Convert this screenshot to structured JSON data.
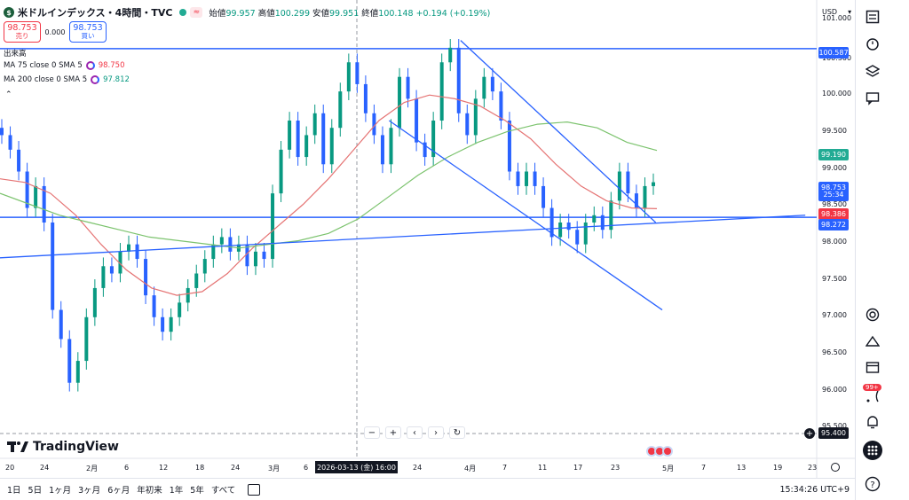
{
  "header": {
    "symbol_logo": "$",
    "title": "米ドルインデックス・4時間・TVC",
    "wave_icon": "≈",
    "ohlc": [
      {
        "label": "始値",
        "value": "99.957",
        "tone": "up"
      },
      {
        "label": "高値",
        "value": "100.299",
        "tone": "up"
      },
      {
        "label": "安値",
        "value": "99.951",
        "tone": "up"
      },
      {
        "label": "終値",
        "value": "100.148",
        "tone": "up"
      }
    ],
    "change": "+0.194 (+0.19%)"
  },
  "trade": {
    "sell_price": "98.753",
    "sell_label": "売り",
    "spread": "0.000",
    "buy_price": "98.753",
    "buy_label": "買い"
  },
  "legend": {
    "volume": "出来高",
    "ma75_name": "MA 75 close 0 SMA 5",
    "ma75_value": "98.750",
    "ma200_name": "MA 200 close 0 SMA 5",
    "ma200_value": "97.812",
    "collapse": "⌃"
  },
  "currency": {
    "label": "USD",
    "chevron": "▾"
  },
  "price_axis": {
    "labels": [
      "101.000",
      "100.500",
      "100.000",
      "99.500",
      "99.000",
      "98.500",
      "98.000",
      "97.500",
      "97.000",
      "96.500",
      "96.000",
      "95.500"
    ],
    "tags": {
      "hline_top": "100.587",
      "ma200_tag": "99.190",
      "last_price": "98.753",
      "countdown": "25:34",
      "ma75_tag": "98.386",
      "hline_bottom": "98.272",
      "crosshair": "95.400"
    },
    "crosshair_plus": "+"
  },
  "time_axis": {
    "labels": [
      "20",
      "24",
      "2月",
      "6",
      "12",
      "18",
      "24",
      "3月",
      "6",
      "24",
      "4月",
      "7",
      "11",
      "17",
      "23",
      "5月",
      "7",
      "13",
      "19",
      "23"
    ],
    "cursor": "2026-03-13 (金)   16:00"
  },
  "logo_text": "TradingView",
  "nav_controls": [
    "−",
    "+",
    "‹",
    "›",
    "↻"
  ],
  "range_buttons": [
    "1日",
    "5日",
    "1ヶ月",
    "3ヶ月",
    "6ヶ月",
    "年初来",
    "1年",
    "5年",
    "すべて"
  ],
  "clock": "15:34:26 UTC+9",
  "toolbar_badge": "99+",
  "colors": {
    "up": "#089981",
    "down": "#2962ff",
    "ma75": "#e57373",
    "ma200": "#7cc36e",
    "hline": "#2962ff",
    "sell": "#f23645",
    "buy": "#2962ff"
  },
  "chart_data": {
    "type": "candlestick",
    "symbol": "米ドルインデックス",
    "interval": "4時間",
    "y_range": [
      95.4,
      101.0
    ],
    "horizontal_lines": [
      100.587,
      98.272
    ],
    "ma_series": [
      {
        "name": "MA 75",
        "color": "#e57373",
        "last": 98.386,
        "values": [
          98.8,
          98.75,
          98.6,
          98.3,
          97.9,
          97.55,
          97.3,
          97.2,
          97.25,
          97.5,
          97.85,
          98.15,
          98.45,
          98.8,
          99.2,
          99.6,
          99.85,
          99.95,
          99.9,
          99.8,
          99.6,
          99.35,
          99.0,
          98.7,
          98.5,
          98.4,
          98.39
        ]
      },
      {
        "name": "MA 200",
        "color": "#7cc36e",
        "last": 99.19,
        "values": [
          98.6,
          98.45,
          98.3,
          98.2,
          98.1,
          98.0,
          97.95,
          97.9,
          97.85,
          97.9,
          97.95,
          98.05,
          98.25,
          98.55,
          98.85,
          99.1,
          99.3,
          99.45,
          99.55,
          99.58,
          99.5,
          99.3,
          99.19
        ]
      }
    ],
    "trendlines": [
      {
        "from": [
          "2026-03-31",
          100.7
        ],
        "to": [
          "2026-04-30",
          98.2
        ]
      },
      {
        "from": [
          "2026-03-20",
          99.6
        ],
        "to": [
          "2026-05-01",
          97.0
        ]
      },
      {
        "from": [
          "2026-01-16",
          97.7
        ],
        "to": [
          "2026-05-23",
          98.3
        ]
      }
    ],
    "closes": [
      99.4,
      99.2,
      98.9,
      98.4,
      98.7,
      98.2,
      97.0,
      96.6,
      96.0,
      96.3,
      96.9,
      97.3,
      97.6,
      97.5,
      97.8,
      97.9,
      97.7,
      97.2,
      96.9,
      96.7,
      96.9,
      97.1,
      97.3,
      97.5,
      97.7,
      97.9,
      98.0,
      97.8,
      97.9,
      97.6,
      97.8,
      97.7,
      98.6,
      99.2,
      99.6,
      99.1,
      99.4,
      99.7,
      99.0,
      99.5,
      100.0,
      100.4,
      100.1,
      99.7,
      99.4,
      99.0,
      99.5,
      100.2,
      99.9,
      99.3,
      99.1,
      99.6,
      100.4,
      100.6,
      99.7,
      99.4,
      99.9,
      100.2,
      100.0,
      99.6,
      98.9,
      98.7,
      98.9,
      98.7,
      98.4,
      98.0,
      98.2,
      98.1,
      97.9,
      98.2,
      98.3,
      98.1,
      98.5,
      98.9,
      98.6,
      98.4,
      98.7,
      98.753
    ]
  }
}
